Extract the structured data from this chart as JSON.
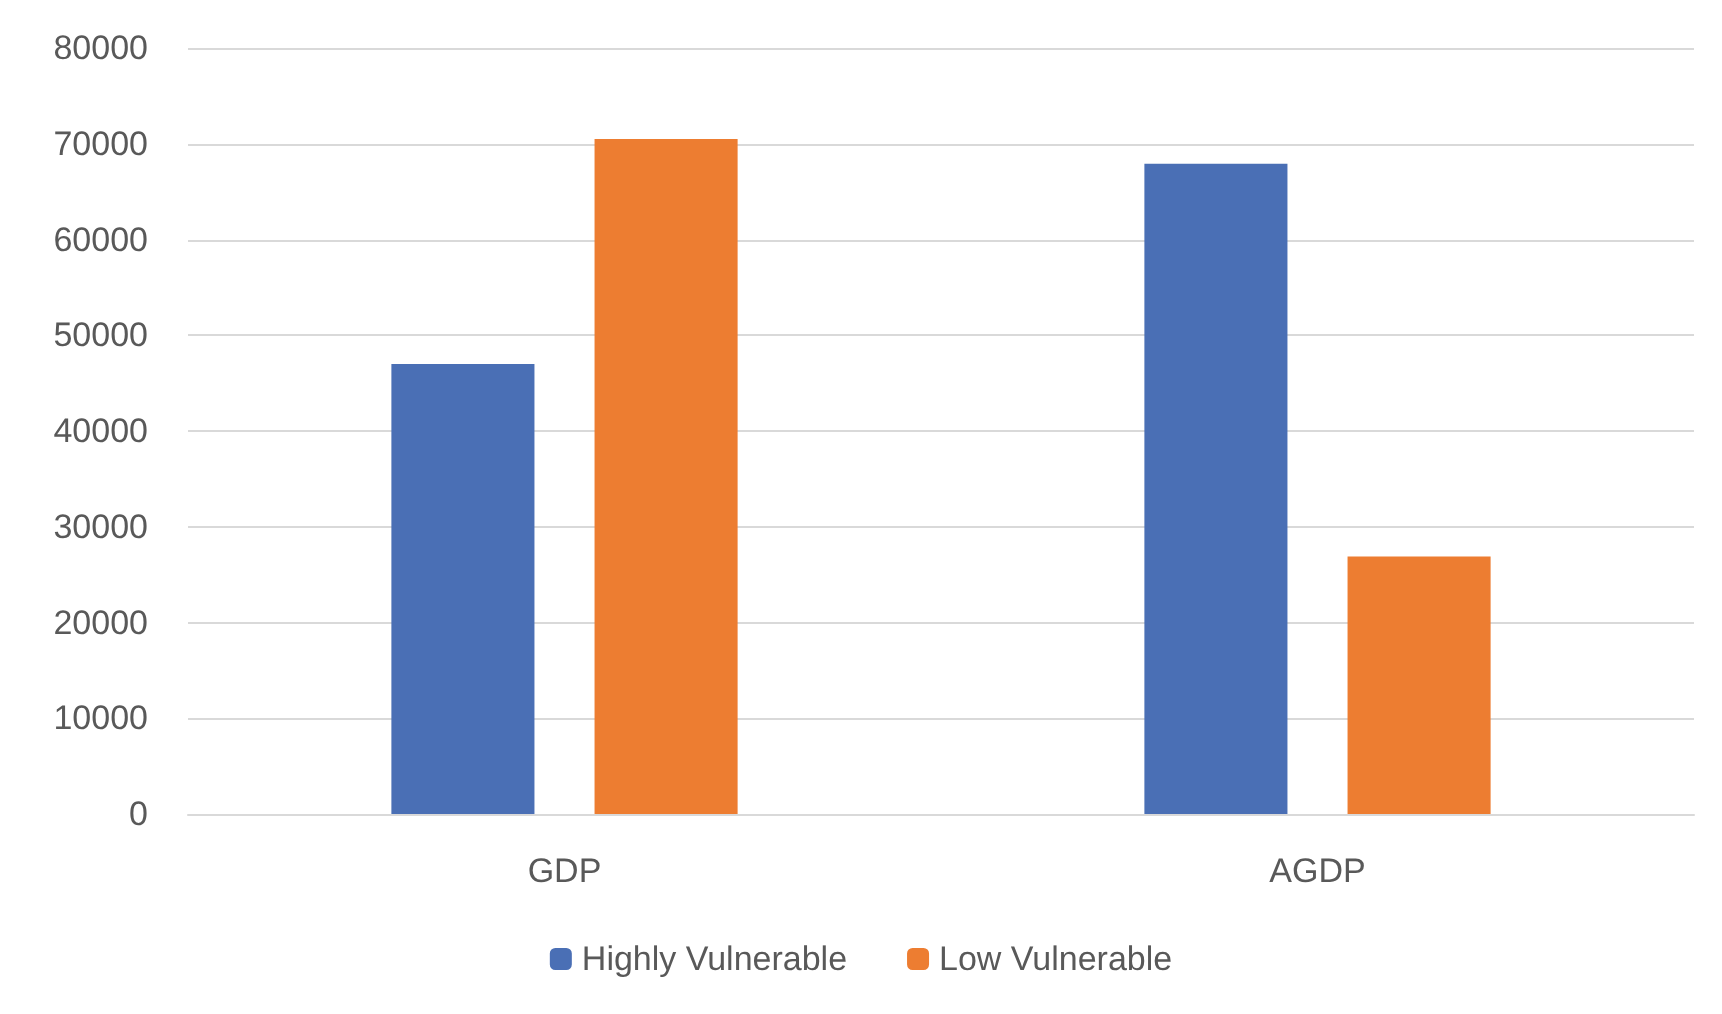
{
  "chart_data": {
    "type": "bar",
    "categories": [
      "GDP",
      "AGDP"
    ],
    "series": [
      {
        "name": "Highly Vulnerable",
        "color": "#4a6fb5",
        "values": [
          47000,
          67900
        ]
      },
      {
        "name": "Low Vulnerable",
        "color": "#ed7d31",
        "values": [
          70500,
          26900
        ]
      }
    ],
    "ylim": [
      0,
      80000
    ],
    "yticks": [
      0,
      10000,
      20000,
      30000,
      40000,
      50000,
      60000,
      70000,
      80000
    ],
    "grid": "y",
    "legend": "bottom"
  }
}
